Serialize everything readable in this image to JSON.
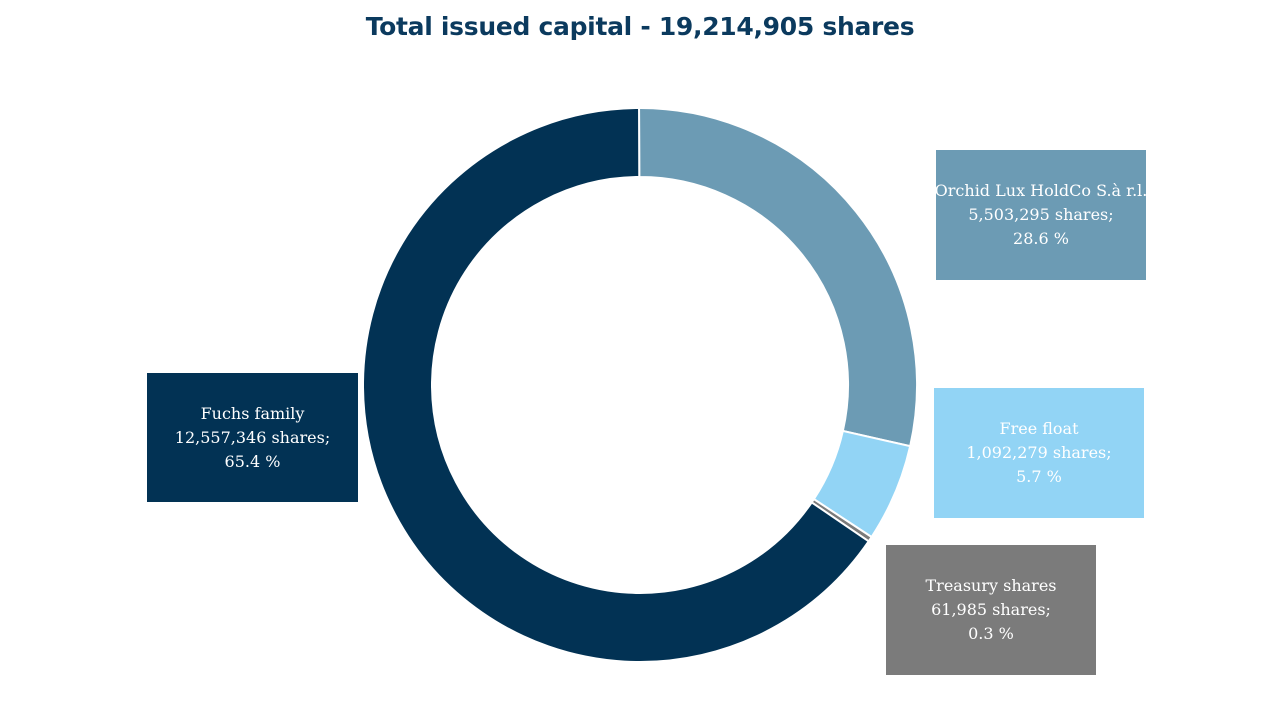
{
  "chart_data": {
    "type": "pie",
    "donut": true,
    "title": "Total issued capital - 19,214,905 shares",
    "slices": [
      {
        "name": "Orchid Lux HoldCo S.à r.l.",
        "value": 28.6,
        "shares_text": "5,503,295 shares;",
        "pct_text": "28.6 %",
        "color": "#6c9bb4"
      },
      {
        "name": "Free float",
        "value": 5.7,
        "shares_text": "1,092,279 shares;",
        "pct_text": "5.7 %",
        "color": "#92d4f5"
      },
      {
        "name": "Treasury shares",
        "value": 0.3,
        "shares_text": "61,985 shares;",
        "pct_text": "0.3 %",
        "color": "#7b7b7b"
      },
      {
        "name": "Fuchs family",
        "value": 65.4,
        "shares_text": "12,557,346 shares;",
        "pct_text": "65.4 %",
        "color": "#023254"
      }
    ]
  }
}
